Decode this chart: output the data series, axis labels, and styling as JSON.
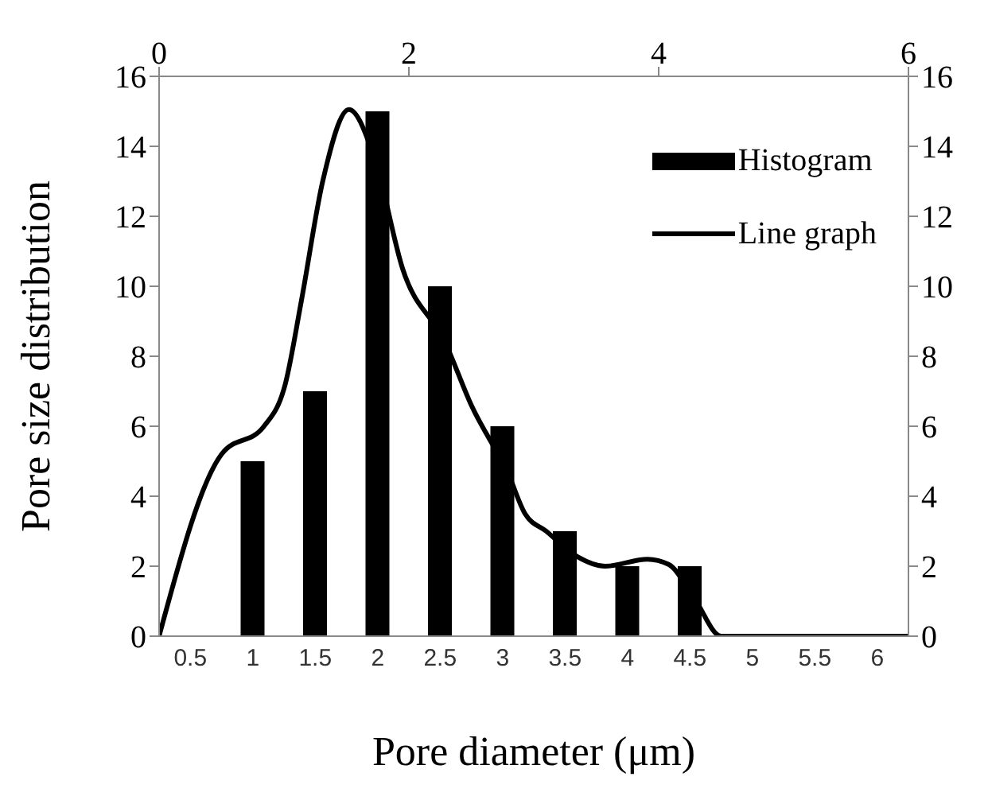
{
  "chart_data": {
    "type": "bar",
    "xlabel": "Pore diameter (μm)",
    "ylabel": "Pore size distribution",
    "categories": [
      "0.5",
      "1",
      "1.5",
      "2",
      "2.5",
      "3",
      "3.5",
      "4",
      "4.5",
      "5",
      "5.5",
      "6"
    ],
    "series": [
      {
        "name": "Histogram",
        "color": "#000000",
        "values": [
          0,
          5,
          7,
          15,
          10,
          6,
          3,
          2,
          2,
          0,
          0,
          0
        ]
      },
      {
        "name": "Line graph",
        "type": "line",
        "axis": "x2",
        "color": "#000000",
        "x": [
          0,
          0.5,
          0.84,
          1.01,
          1.14,
          1.31,
          1.52,
          1.73,
          1.95,
          2.29,
          2.5,
          2.8,
          2.93,
          3.1,
          3.35,
          3.57,
          3.91,
          4.08,
          4.29,
          4.5,
          4.72,
          6
        ],
        "values": [
          0,
          5.2,
          6.0,
          7.2,
          9.6,
          13.0,
          15.05,
          13.6,
          10.5,
          8.4,
          6.6,
          4.6,
          3.5,
          3.0,
          2.27,
          2.0,
          2.2,
          2.05,
          1.05,
          0,
          0,
          0
        ]
      }
    ],
    "ylim": [
      0,
      16
    ],
    "yticks": [
      0,
      2,
      4,
      6,
      8,
      10,
      12,
      14,
      16
    ],
    "y2lim": [
      0,
      16
    ],
    "y2ticks": [
      0,
      2,
      4,
      6,
      8,
      10,
      12,
      14,
      16
    ],
    "x2lim": [
      0,
      6
    ],
    "x2ticks": [
      0,
      2,
      4,
      6
    ],
    "legend": "top right",
    "grid": false,
    "line_style": "solid",
    "marker": "none"
  }
}
